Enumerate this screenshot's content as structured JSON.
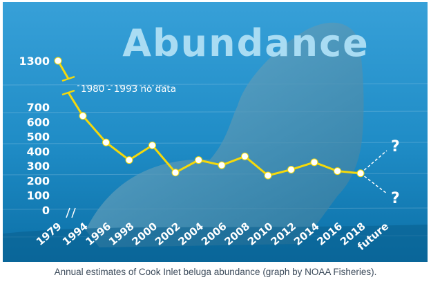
{
  "chart_data": {
    "type": "line",
    "title": "Abundance",
    "caption": "Annual estimates of Cook Inlet beluga abundance (graph by NOAA Fisheries).",
    "categories": [
      "1979",
      "1994",
      "1996",
      "1998",
      "2000",
      "2002",
      "2004",
      "2006",
      "2008",
      "2010",
      "2012",
      "2014",
      "2016",
      "2018",
      "future"
    ],
    "values": [
      1300,
      640,
      460,
      340,
      440,
      255,
      340,
      305,
      365,
      235,
      275,
      325,
      265,
      250,
      null
    ],
    "y_ticks": [
      "0",
      "100",
      "200",
      "300",
      "400",
      "500",
      "600",
      "700",
      "1300"
    ],
    "y_tick_values": [
      0,
      100,
      200,
      300,
      400,
      500,
      600,
      700,
      1300
    ],
    "ylim": [
      0,
      1300
    ],
    "axis_break_note": "1980 - 1993  no data",
    "future_marks": [
      "?",
      "?"
    ],
    "colors": {
      "line": "#f5d90a",
      "marker": "#ffffff",
      "background_top": "#3aa0d6",
      "background_bottom": "#0c6fa8",
      "title": "#a9dcf3",
      "text": "#ffffff"
    },
    "grid": false,
    "legend": "none"
  }
}
